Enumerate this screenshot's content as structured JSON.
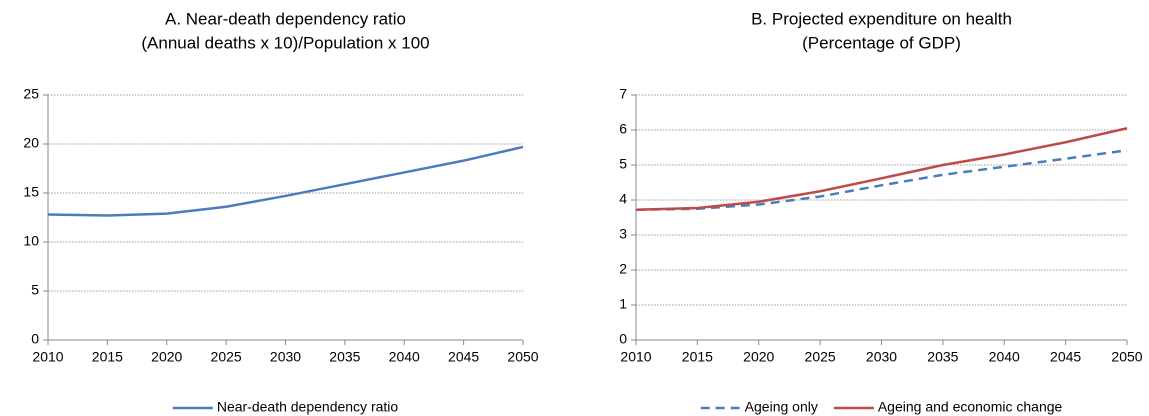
{
  "chart_data": [
    {
      "type": "line",
      "title": "A. Near-death dependency ratio",
      "subtitle": "(Annual deaths x 10)/Population x 100",
      "x": [
        2010,
        2015,
        2020,
        2025,
        2030,
        2035,
        2040,
        2045,
        2050
      ],
      "series": [
        {
          "name": "Near-death dependency ratio",
          "color": "#4a7ebb",
          "dashed": false,
          "values": [
            12.8,
            12.7,
            12.9,
            13.6,
            14.7,
            15.9,
            17.1,
            18.3,
            19.7
          ]
        }
      ],
      "xlim": [
        2010,
        2050
      ],
      "xticks": [
        2010,
        2015,
        2020,
        2025,
        2030,
        2035,
        2040,
        2045,
        2050
      ],
      "ylim": [
        0,
        25
      ],
      "yticks": [
        0,
        5,
        10,
        15,
        20,
        25
      ],
      "grid": true,
      "legend": "bottom"
    },
    {
      "type": "line",
      "title": "B. Projected expenditure on health",
      "subtitle": "(Percentage of GDP)",
      "x": [
        2010,
        2015,
        2020,
        2025,
        2030,
        2035,
        2040,
        2045,
        2050
      ],
      "series": [
        {
          "name": "Ageing only",
          "color": "#4a7ebb",
          "dashed": true,
          "values": [
            3.72,
            3.75,
            3.87,
            4.1,
            4.42,
            4.72,
            4.95,
            5.18,
            5.42
          ]
        },
        {
          "name": "Ageing and economic change",
          "color": "#be4b48",
          "dashed": false,
          "values": [
            3.72,
            3.77,
            3.95,
            4.25,
            4.62,
            5.0,
            5.3,
            5.65,
            6.05
          ]
        }
      ],
      "xlim": [
        2010,
        2050
      ],
      "xticks": [
        2010,
        2015,
        2020,
        2025,
        2030,
        2035,
        2040,
        2045,
        2050
      ],
      "ylim": [
        0,
        7
      ],
      "yticks": [
        0,
        1,
        2,
        3,
        4,
        5,
        6,
        7
      ],
      "grid": true,
      "legend": "bottom"
    }
  ]
}
